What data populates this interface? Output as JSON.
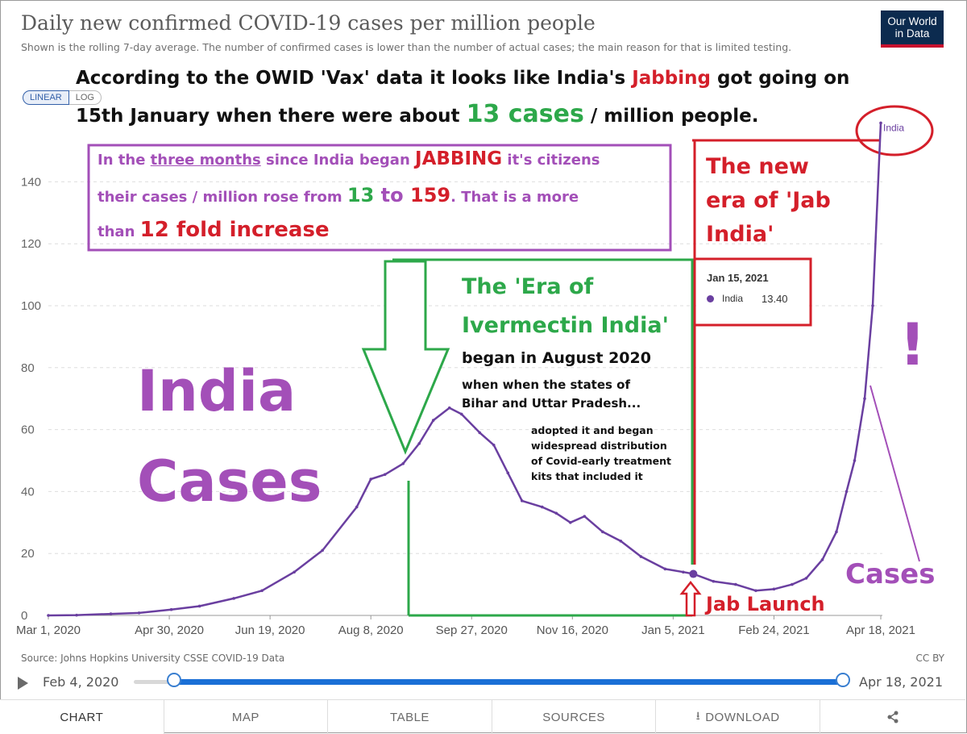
{
  "header": {
    "title": "Daily new confirmed COVID-19 cases per million people",
    "subtitle": "Shown is the rolling 7-day average. The number of confirmed cases is lower than the number of actual cases; the main reason for that is limited testing.",
    "logo_line1": "Our World",
    "logo_line2": "in Data"
  },
  "scale_toggle": {
    "linear": "LINEAR",
    "log": "LOG"
  },
  "colors": {
    "series": "#6a3fa0",
    "annotation_purple": "#a34fb8",
    "annotation_green": "#2da84a",
    "annotation_red": "#d41f2a",
    "slider": "#1a6fd6"
  },
  "annotations": {
    "headline_1a": "According to the OWID 'Vax' data it looks like India's ",
    "headline_1b": "Jabbing",
    "headline_1c": " got going on",
    "headline_2a": "15th January when there were about ",
    "headline_2b": "13 cases",
    "headline_2c": " / million people.",
    "box_1a": "In the ",
    "box_1b": "three months",
    "box_1c": " since India began ",
    "box_1d": "JABBING",
    "box_1e": " it's citizens",
    "box_2a": "their cases / million rose from ",
    "box_2b": "13 to 159",
    "box_2c": ". That is a more",
    "box_3a": "than ",
    "box_3b": "12 fold increase",
    "big_india": "India",
    "big_cases": "Cases",
    "era_ivermectin_1": "The 'Era of",
    "era_ivermectin_2": "Ivermectin India'",
    "began_august": "began in August 2020",
    "when_states": "when when the states of",
    "bihar": "Bihar and Uttar Pradesh...",
    "adopted_1": "adopted it and began",
    "adopted_2": "widespread distribution",
    "adopted_3": "of Covid-early treatment",
    "adopted_4": "kits that included it",
    "jab_era_1": "The new",
    "jab_era_2": "era of 'Jab",
    "jab_era_3": "India'",
    "exclaim": "!",
    "cases_label": "Cases",
    "jab_launch": "Jab Launch"
  },
  "tooltip": {
    "date": "Jan 15, 2021",
    "series": "India",
    "value": "13.40"
  },
  "chart_data": {
    "type": "line",
    "title": "Daily new confirmed COVID-19 cases per million people",
    "series": [
      {
        "name": "India",
        "x": [
          "2020-03-01",
          "2020-03-15",
          "2020-04-01",
          "2020-04-15",
          "2020-05-01",
          "2020-05-15",
          "2020-06-01",
          "2020-06-15",
          "2020-07-01",
          "2020-07-15",
          "2020-08-01",
          "2020-08-08",
          "2020-08-15",
          "2020-08-24",
          "2020-09-01",
          "2020-09-08",
          "2020-09-16",
          "2020-09-22",
          "2020-10-01",
          "2020-10-08",
          "2020-10-15",
          "2020-10-22",
          "2020-11-01",
          "2020-11-08",
          "2020-11-15",
          "2020-11-22",
          "2020-12-01",
          "2020-12-10",
          "2020-12-20",
          "2021-01-01",
          "2021-01-10",
          "2021-01-15",
          "2021-01-25",
          "2021-02-05",
          "2021-02-15",
          "2021-02-24",
          "2021-03-05",
          "2021-03-12",
          "2021-03-20",
          "2021-03-27",
          "2021-04-01",
          "2021-04-05",
          "2021-04-10",
          "2021-04-14",
          "2021-04-18"
        ],
        "y": [
          0,
          0.1,
          0.5,
          0.8,
          1.9,
          3,
          5.5,
          8,
          14,
          21,
          35,
          44,
          45.5,
          49,
          55.5,
          63,
          67,
          65,
          59,
          55,
          46,
          37,
          35,
          33,
          30,
          32,
          27,
          24,
          19,
          15,
          14,
          13.4,
          11,
          10,
          8,
          8.5,
          10,
          12,
          18,
          27,
          40,
          50,
          70,
          100,
          159
        ]
      }
    ],
    "xlabel": "",
    "ylabel": "",
    "x_ticks": [
      "Mar 1, 2020",
      "Apr 30, 2020",
      "Jun 19, 2020",
      "Aug 8, 2020",
      "Sep 27, 2020",
      "Nov 16, 2020",
      "Jan 5, 2021",
      "Feb 24, 2021",
      "Apr 18, 2021"
    ],
    "y_ticks": [
      "0",
      "20",
      "40",
      "60",
      "80",
      "100",
      "120",
      "140"
    ],
    "xlim": [
      "2020-03-01",
      "2021-04-18"
    ],
    "ylim": [
      0,
      159
    ],
    "grid": "horizontal-dashed",
    "end_label": "India"
  },
  "footer": {
    "source": "Source: Johns Hopkins University CSSE COVID-19 Data",
    "license": "CC BY",
    "start_date": "Feb 4, 2020",
    "end_date": "Apr 18, 2021"
  },
  "tabs": [
    "CHART",
    "MAP",
    "TABLE",
    "SOURCES",
    "DOWNLOAD"
  ]
}
